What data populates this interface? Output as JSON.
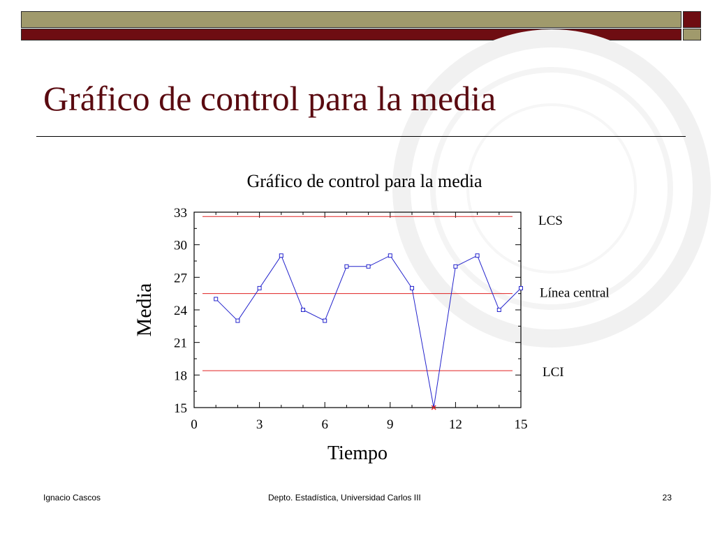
{
  "slide": {
    "title": "Gráfico de control para la media"
  },
  "footer": {
    "author": "Ignacio Cascos",
    "department": "Depto. Estadística, Universidad Carlos III",
    "page_number": "23"
  },
  "colors": {
    "title": "#5a0a10",
    "bar_olive": "#a09a6c",
    "bar_maroon": "#6e0d12",
    "series": "#2222cc",
    "control_lines": "#e02020",
    "outlier": "#e02020"
  },
  "chart_data": {
    "type": "line",
    "title": "Gráfico de control para la media",
    "xlabel": "Tiempo",
    "ylabel": "Media",
    "x": [
      1,
      2,
      3,
      4,
      5,
      6,
      7,
      8,
      9,
      10,
      11,
      12,
      13,
      14,
      15
    ],
    "y": [
      25,
      23,
      26,
      29,
      24,
      23,
      28,
      28,
      29,
      26,
      15,
      28,
      29,
      24,
      26
    ],
    "xlim": [
      0,
      15
    ],
    "ylim": [
      15,
      33
    ],
    "xticks": [
      0,
      3,
      6,
      9,
      12,
      15
    ],
    "yticks": [
      15,
      18,
      21,
      24,
      27,
      30,
      33
    ],
    "control_limits": [
      {
        "label": "LCS",
        "value": 32.6
      },
      {
        "label": "Línea central",
        "value": 25.5
      },
      {
        "label": "LCI",
        "value": 18.4
      }
    ],
    "out_of_control_points": [
      11
    ],
    "grid": false
  }
}
